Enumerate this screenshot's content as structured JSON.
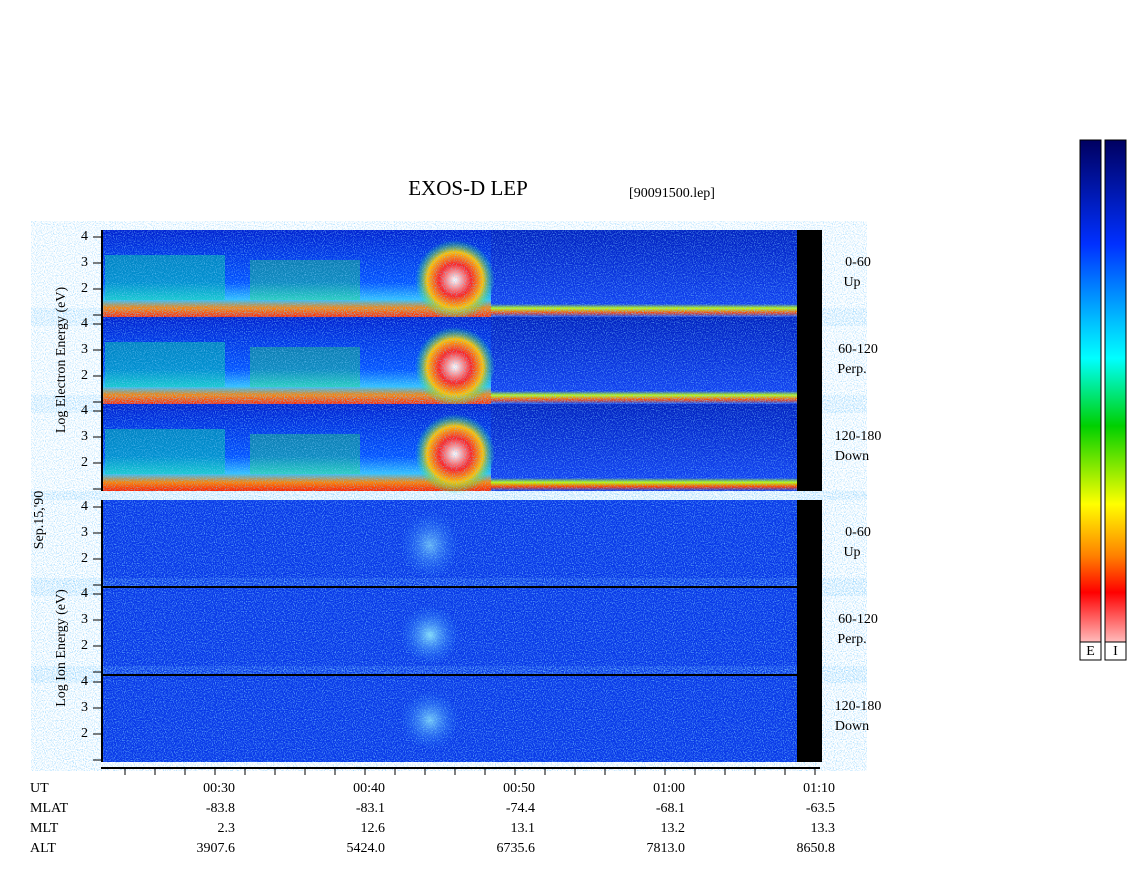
{
  "header": {
    "title": "EXOS-D LEP",
    "file": "[90091500.lep]"
  },
  "left_labels": {
    "electron": "Log Electron Energy (eV)",
    "date": "Sep.15,'90",
    "ion": "Log Ion Energy (eV)"
  },
  "energy_ticks": [
    2,
    3,
    4
  ],
  "pitch_angles": [
    {
      "range": "0-60",
      "direction": "Up"
    },
    {
      "range": "60-120",
      "direction": "Perp."
    },
    {
      "range": "120-180",
      "direction": "Down"
    }
  ],
  "ephemeris": [
    {
      "name": "UT",
      "values": [
        "00:30",
        "00:40",
        "00:50",
        "01:00",
        "01:10"
      ]
    },
    {
      "name": "MLAT",
      "values": [
        "-83.8",
        "-83.1",
        "-74.4",
        "-68.1",
        "-63.5"
      ]
    },
    {
      "name": "MLT",
      "values": [
        "2.3",
        "12.6",
        "13.1",
        "13.2",
        "13.3"
      ]
    },
    {
      "name": "ALT",
      "values": [
        "3907.6",
        "5424.0",
        "6735.6",
        "7813.0",
        "8650.8"
      ]
    }
  ],
  "colorbars": [
    "E",
    "I"
  ]
}
